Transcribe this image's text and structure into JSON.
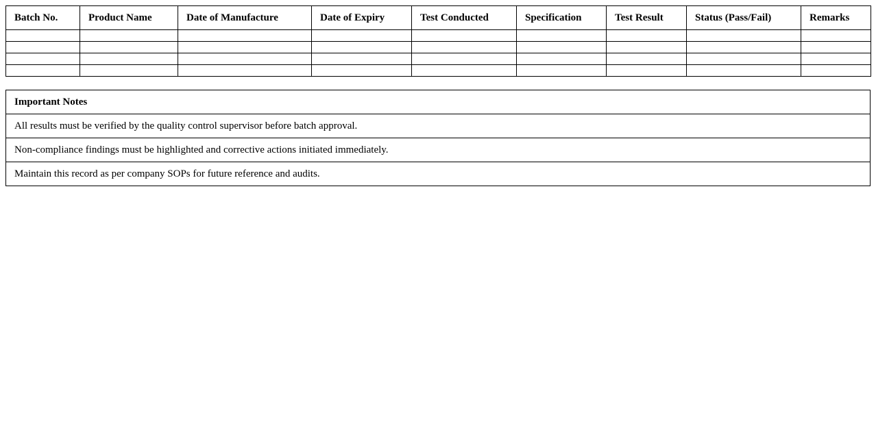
{
  "table": {
    "headers": [
      "Batch No.",
      "Product Name",
      "Date of Manufacture",
      "Date of Expiry",
      "Test Conducted",
      "Specification",
      "Test Result",
      "Status (Pass/Fail)",
      "Remarks"
    ],
    "rows": [
      [
        "",
        "",
        "",
        "",
        "",
        "",
        "",
        "",
        ""
      ],
      [
        "",
        "",
        "",
        "",
        "",
        "",
        "",
        "",
        ""
      ],
      [
        "",
        "",
        "",
        "",
        "",
        "",
        "",
        "",
        ""
      ],
      [
        "",
        "",
        "",
        "",
        "",
        "",
        "",
        "",
        ""
      ]
    ]
  },
  "notes": {
    "title": "Important Notes",
    "items": [
      "All results must be verified by the quality control supervisor before batch approval.",
      "Non-compliance findings must be highlighted and corrective actions initiated immediately.",
      "Maintain this record as per company SOPs for future reference and audits."
    ]
  }
}
